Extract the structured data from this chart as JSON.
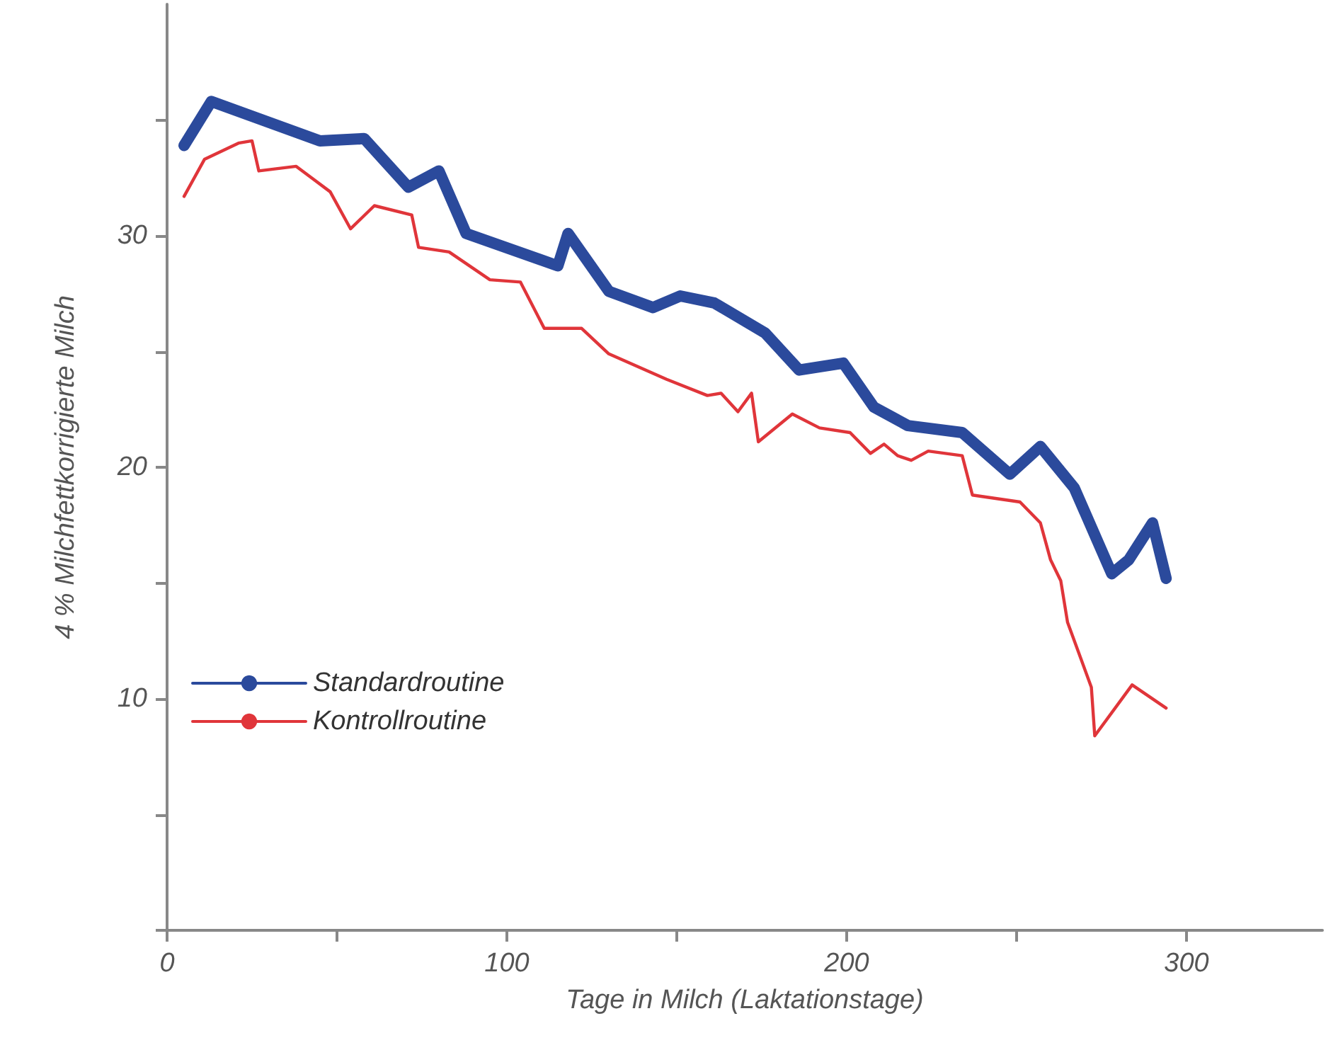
{
  "chart_data": {
    "type": "line",
    "xlabel": "Tage in Milch (Laktationstage)",
    "ylabel": "4 % Milchfettkorrigierte Milch",
    "xlim": [
      0,
      340
    ],
    "xticks": [
      0,
      {
        "value": 50,
        "label": null
      },
      100,
      {
        "value": 150,
        "label": null
      },
      200,
      {
        "value": 250,
        "label": null
      },
      300
    ],
    "ylim": [
      0,
      40
    ],
    "yticks": [
      {
        "value": 0,
        "label": null
      },
      {
        "value": 5,
        "label": null
      },
      10,
      {
        "value": 15,
        "label": null
      },
      20,
      {
        "value": 25,
        "label": null
      },
      30,
      {
        "value": 35,
        "label": null
      }
    ],
    "grid": false,
    "legend": "bottom left",
    "marker": "none",
    "line_style": "solid",
    "series": [
      {
        "name": "Standardroutine",
        "color": "#2b4a9c",
        "x": [
          5,
          13,
          45,
          58,
          71,
          80,
          88,
          115,
          118,
          130,
          143,
          151,
          161,
          176,
          186,
          199,
          208,
          218,
          234,
          248,
          257,
          267,
          278,
          283,
          290,
          294
        ],
        "values": [
          33.9,
          35.8,
          34.1,
          34.2,
          32.1,
          32.8,
          30.1,
          28.7,
          30.1,
          27.6,
          26.9,
          27.4,
          27.1,
          25.8,
          24.2,
          24.5,
          22.6,
          21.8,
          21.5,
          19.7,
          20.9,
          19.1,
          15.4,
          16.0,
          17.6,
          15.2
        ]
      },
      {
        "name": "Kontrollroutine",
        "color": "#e0353a",
        "x": [
          5,
          11,
          21,
          25,
          27,
          38,
          48,
          54,
          61,
          72,
          74,
          83,
          95,
          104,
          111,
          122,
          130,
          147,
          159,
          163,
          168,
          172,
          174,
          184,
          192,
          201,
          207,
          211,
          215,
          219,
          224,
          234,
          237,
          251,
          257,
          260,
          263,
          265,
          272,
          273,
          284,
          294
        ],
        "values": [
          31.7,
          33.3,
          34.0,
          34.1,
          32.8,
          33.0,
          31.9,
          30.3,
          31.3,
          30.9,
          29.5,
          29.3,
          28.1,
          28.0,
          26.0,
          26.0,
          24.9,
          23.8,
          23.1,
          23.2,
          22.4,
          23.2,
          21.1,
          22.3,
          21.7,
          21.5,
          20.6,
          21.0,
          20.5,
          20.3,
          20.7,
          20.5,
          18.8,
          18.5,
          17.6,
          16.0,
          15.1,
          13.3,
          10.5,
          8.4,
          10.6,
          9.6
        ]
      }
    ]
  }
}
